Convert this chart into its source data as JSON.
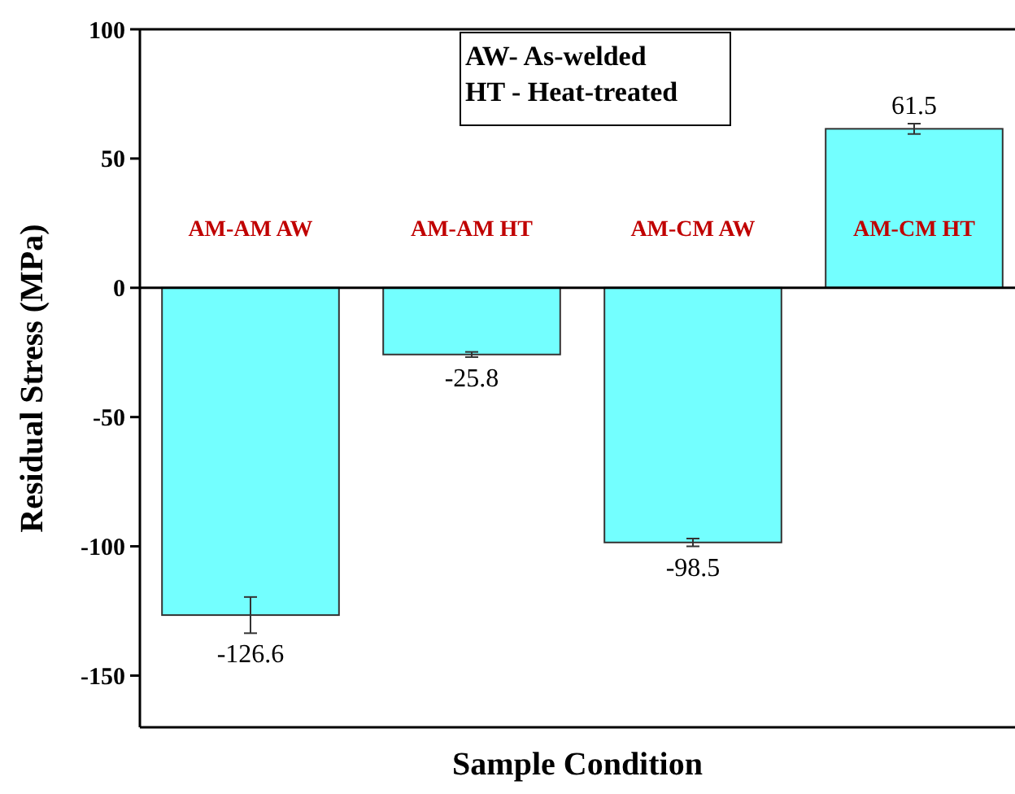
{
  "chart_data": {
    "type": "bar",
    "xlabel": "Sample Condition",
    "ylabel": "Residual Stress (MPa)",
    "categories": [
      "AM-AM AW",
      "AM-AM HT",
      "AM-CM AW",
      "AM-CM HT"
    ],
    "values": [
      -126.6,
      -25.8,
      -98.5,
      61.5
    ],
    "errors": [
      7,
      1,
      1.5,
      2
    ],
    "color": "#73ffff",
    "ylim": [
      -170,
      100
    ],
    "yticks": [
      -150,
      -100,
      -50,
      0,
      50,
      100
    ],
    "data_labels": true,
    "grid": false,
    "annotations": [
      "AW- As-welded",
      "HT - Heat-treated"
    ]
  }
}
